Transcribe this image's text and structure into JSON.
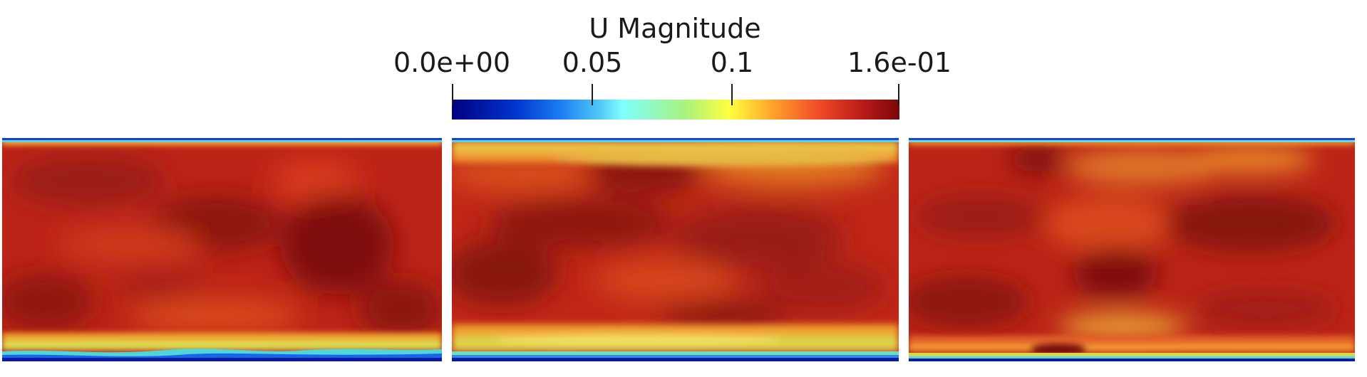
{
  "chart_data": {
    "type": "heatmap",
    "title": "U Magnitude",
    "colorbar": {
      "min": 0.0,
      "max": 0.16,
      "ticks": [
        {
          "value": 0.0,
          "label": "0.0e+00"
        },
        {
          "value": 0.05,
          "label": "0.05"
        },
        {
          "value": 0.1,
          "label": "0.1"
        },
        {
          "value": 0.16,
          "label": "1.6e-01"
        }
      ],
      "colormap": "jet",
      "colors": [
        "#00007f",
        "#1a7cf2",
        "#7fffff",
        "#ffff3f",
        "#f04a28",
        "#7a0808"
      ]
    },
    "panels": 3
  }
}
